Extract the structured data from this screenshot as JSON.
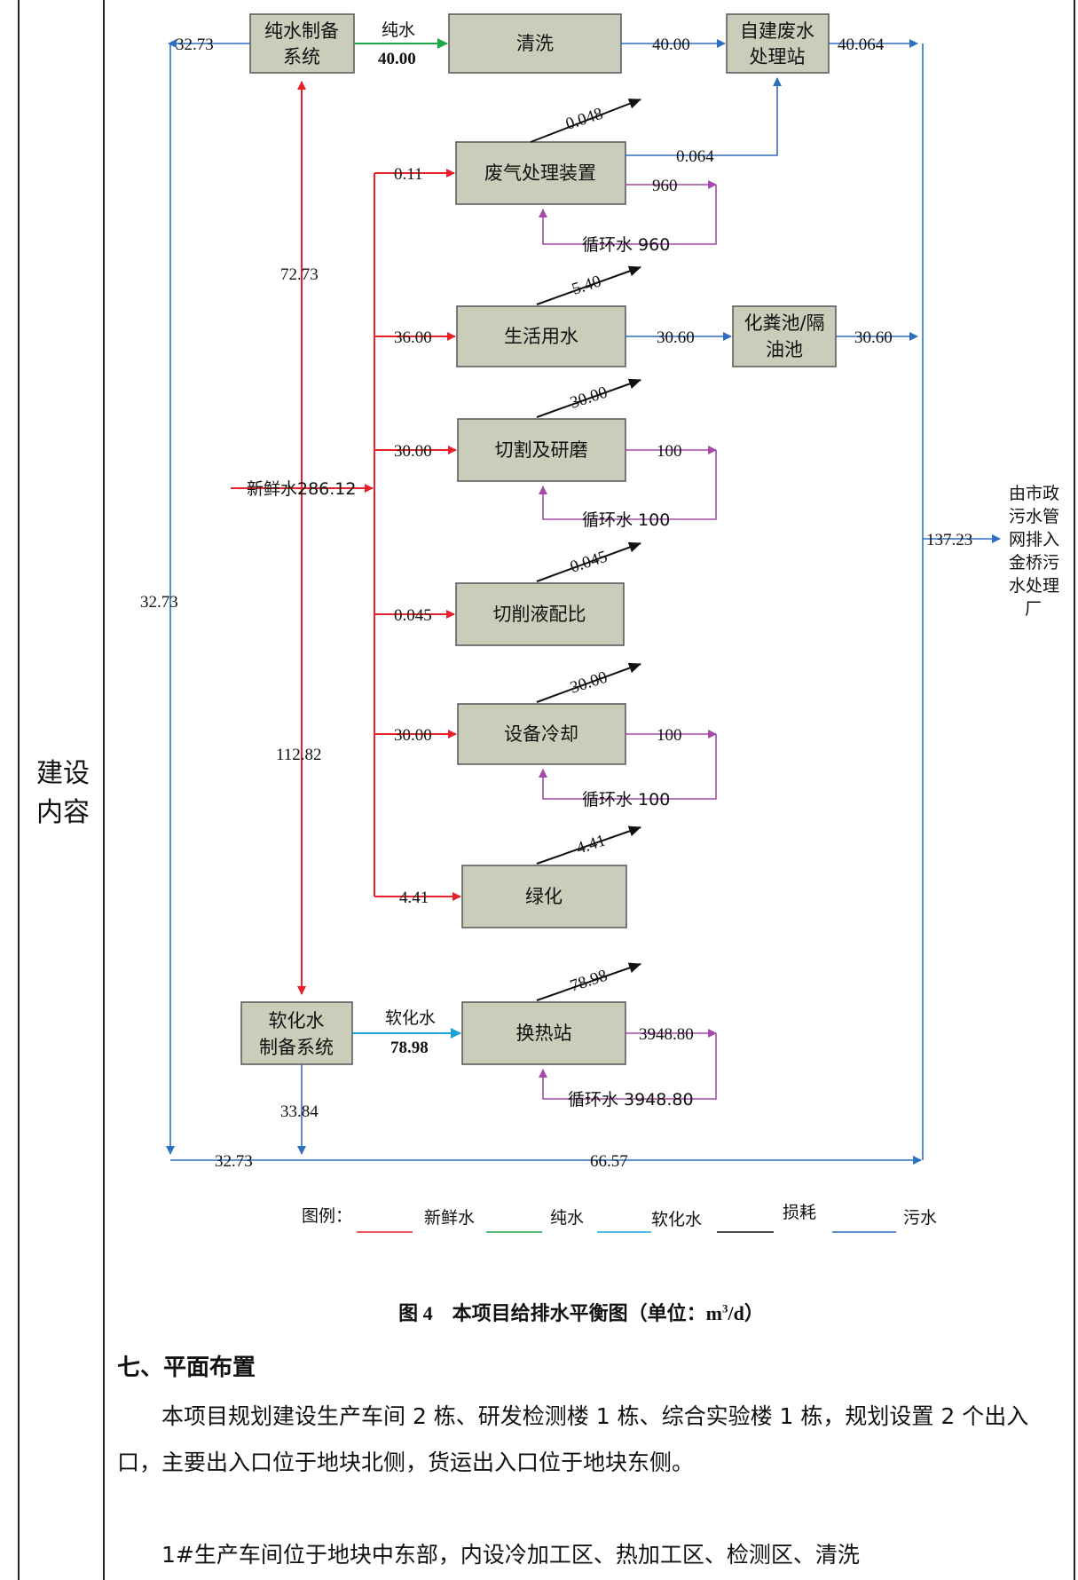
{
  "side_label": "建设\n内容",
  "diagram": {
    "boxes": {
      "pure_water_system": [
        "纯水制备",
        "系统"
      ],
      "cleaning": [
        "清洗"
      ],
      "wastewater_station": [
        "自建废水",
        "处理站"
      ],
      "exhaust_treatment": [
        "废气处理装置"
      ],
      "domestic_water": [
        "生活用水"
      ],
      "septic_tank": [
        "化粪池/隔",
        "油池"
      ],
      "cutting_grinding": [
        "切割及研磨"
      ],
      "cutting_fluid": [
        "切削液配比"
      ],
      "equipment_cooling": [
        "设备冷却"
      ],
      "greening": [
        "绿化"
      ],
      "softened_system": [
        "软化水",
        "制备系统"
      ],
      "heat_exchange": [
        "换热站"
      ]
    },
    "labels": {
      "top_left_return": "32.73",
      "pure_water_word": "纯水",
      "pure_water_value": "40.00",
      "cleaning_out": "40.00",
      "station_out": "40.064",
      "exhaust_loss": "0.048",
      "exhaust_to_station": "0.064",
      "exhaust_in": "0.11",
      "exhaust_loop": "960",
      "exhaust_recycle": "循环水 960",
      "fresh_to_pure": "72.73",
      "domestic_loss": "5.40",
      "domestic_in": "36.00",
      "domestic_out": "30.60",
      "septic_out": "30.60",
      "cutting_loss": "30.00",
      "cutting_in": "30.00",
      "cutting_loop": "100",
      "cutting_recycle": "循环水 100",
      "fresh_water": "新鲜水286.12",
      "municipal_total": "137.23",
      "discharge_note": [
        "由市政",
        "污水管",
        "网排入",
        "金桥污",
        "水处理",
        "厂"
      ],
      "left_trunk": "32.73",
      "fluid_loss": "0.045",
      "fluid_in": "0.045",
      "cooling_loss": "30.00",
      "cooling_in": "30.00",
      "cooling_loop": "100",
      "cooling_recycle": "循环水 100",
      "fresh_to_soft": "112.82",
      "green_loss": "4.41",
      "green_in": "4.41",
      "heat_loss": "78.98",
      "soft_word": "软化水",
      "soft_value": "78.98",
      "heat_loop": "3948.80",
      "heat_recycle": "循环水 3948.80",
      "soft_discharge": "33.84",
      "bottom_left": "32.73",
      "bottom_total": "66.57"
    },
    "legend": {
      "title": "图例：",
      "items": [
        {
          "label": "新鲜水",
          "color": "#e8202a"
        },
        {
          "label": "纯水",
          "color": "#1fa84a"
        },
        {
          "label": "软化水",
          "color": "#1aa5d8"
        },
        {
          "label": "损耗",
          "color": "#111111"
        },
        {
          "label": "污水",
          "color": "#2f6fbf"
        }
      ]
    }
  },
  "caption": {
    "prefix": "图 4　本项目给排水平衡图（单位：",
    "unit_base": "m",
    "unit_sup": "3",
    "unit_tail": "/d）"
  },
  "section_title": "七、平面布置",
  "paragraphs": [
    "本项目规划建设生产车间 2 栋、研发检测楼 1 栋、综合实验楼 1 栋，规划设置 2 个出入口，主要出入口位于地块北侧，货运出入口位于地块东侧。",
    "1#生产车间位于地块中东部，内设冷加工区、热加工区、检测区、清洗"
  ]
}
